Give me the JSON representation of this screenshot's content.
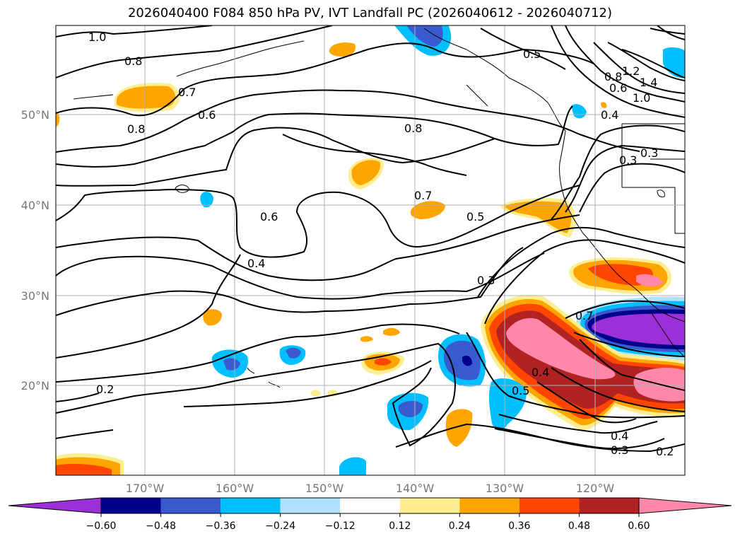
{
  "title": "2026040400 F084 850 hPa PV, IVT Landfall PC (2026040612 - 2026040712)",
  "lat_labels": [
    "50°N",
    "40°N",
    "30°N",
    "20°N"
  ],
  "lon_labels": [
    "170°W",
    "160°W",
    "150°W",
    "140°W",
    "130°W",
    "120°W"
  ],
  "contour_labels": [
    "1.0",
    "0.8",
    "0.7",
    "0.6",
    "0.8",
    "0.8",
    "0.5",
    "0.8",
    "0.6",
    "1.2",
    "1.0",
    "1.4",
    "0.4",
    "0.3",
    "0.7",
    "0.6",
    "0.5",
    "0.4",
    "0.3",
    "0.2",
    "0.4",
    "0.5",
    "0.4",
    "0.3",
    "0.2",
    "0.3",
    "0.7"
  ],
  "colorbar": {
    "ticks": [
      "−0.60",
      "−0.48",
      "−0.36",
      "−0.24",
      "−0.12",
      "0.12",
      "0.24",
      "0.36",
      "0.48",
      "0.60"
    ],
    "colors": [
      "#9b30d9",
      "#00008b",
      "#3a5bd0",
      "#00bfff",
      "#b0e2ff",
      "#ffffff",
      "#ffee90",
      "#ffa500",
      "#ff4500",
      "#b22222",
      "#ff88aa",
      "#ff88aa"
    ]
  }
}
